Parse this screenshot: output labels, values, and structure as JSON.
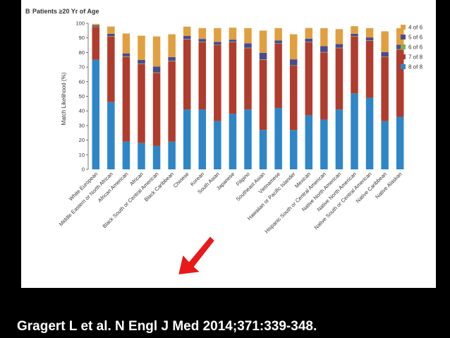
{
  "slide": {
    "citation": "Gragert L et al. N Engl J Med 2014;371:339-348.",
    "colors": {
      "background": "#000000",
      "panel": "#ffffff",
      "arrow": "#e8181b"
    }
  },
  "chart_data": {
    "type": "bar",
    "stacked": true,
    "panel_letter": "B",
    "title": "Patients ≥20 Yr of Age",
    "ylabel": "Match Likelihood (%)",
    "xlabel": "",
    "ylim": [
      0,
      100
    ],
    "yticks": [
      0,
      10,
      20,
      30,
      40,
      50,
      60,
      70,
      80,
      90,
      100
    ],
    "grid": false,
    "legend_position": "top-right",
    "categories": [
      "White European",
      "Middle Eastern or North African",
      "African American",
      "African",
      "Black South or Central American",
      "Black Caribbean",
      "Chinese",
      "Korean",
      "South Asian",
      "Japanese",
      "Filipino",
      "Southeast Asian",
      "Vietnamese",
      "Hawaiian or Pacific Islander",
      "Mexican",
      "Hispanic South or Central American",
      "Native North American",
      "Native North American",
      "Native South or Central American",
      "Native Caribbean",
      "Native Alaskan"
    ],
    "series": [
      {
        "name": "8 of 8",
        "color": "#2e86c8",
        "values": [
          75,
          46,
          19,
          18,
          16,
          19,
          41,
          41,
          33,
          38,
          41,
          27,
          42,
          27,
          37,
          34,
          41,
          52,
          49,
          33,
          36
        ]
      },
      {
        "name": "7 of 8",
        "color": "#b03c2e",
        "values": [
          22.5,
          45,
          58,
          54,
          50,
          55,
          48,
          46,
          52,
          49,
          42,
          48,
          44,
          44,
          50,
          46,
          42,
          39,
          39,
          44,
          46
        ]
      },
      {
        "name": "6 of 6",
        "color": "#86ad4a",
        "values": [
          0.3,
          0.3,
          0.4,
          0.4,
          0.4,
          0.4,
          0.3,
          0.3,
          0.3,
          0.3,
          0.3,
          0.3,
          0.3,
          0.3,
          0.3,
          0.3,
          0.3,
          0.3,
          0.3,
          0.3,
          0.3
        ]
      },
      {
        "name": "5 of 6",
        "color": "#4a4a90",
        "values": [
          0.8,
          1.5,
          2,
          2.5,
          4,
          2.5,
          2,
          2,
          2,
          1.5,
          3,
          4.5,
          2,
          4,
          2.2,
          4,
          2.5,
          1.5,
          2,
          3,
          3
        ]
      },
      {
        "name": "4 of 6",
        "color": "#e0a040",
        "values": [
          1,
          5,
          13.6,
          16.6,
          20.6,
          15.6,
          6.4,
          7.4,
          9.4,
          8.2,
          10.4,
          15.2,
          8.4,
          17.2,
          7.3,
          12.4,
          10.2,
          5.2,
          6.4,
          14.2,
          11.3
        ]
      }
    ],
    "legend_order": [
      "4 of 6",
      "5 of 6",
      "6 of 6",
      "7 of 8",
      "8 of 8"
    ]
  }
}
